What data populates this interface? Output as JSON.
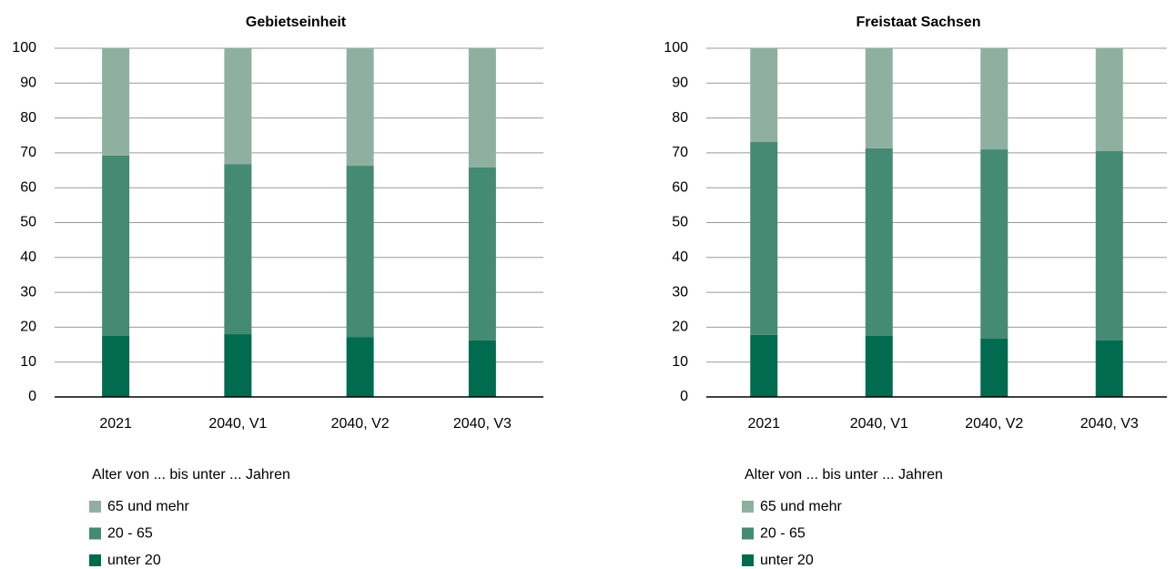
{
  "chart_data": [
    {
      "type": "stacked_bar",
      "title": "Gebietseinheit",
      "categories": [
        "2021",
        "2040, V1",
        "2040, V2",
        "2040, V3"
      ],
      "legend_title": "Alter von ... bis unter ... Jahren",
      "series": [
        {
          "name": "unter 20",
          "color": "#006b4f",
          "values": [
            17.5,
            18.0,
            17.2,
            16.2
          ]
        },
        {
          "name": "20 - 65",
          "color": "#458a72",
          "values": [
            51.7,
            48.8,
            49.1,
            49.6
          ]
        },
        {
          "name": "65 und mehr",
          "color": "#8fb0a0",
          "values": [
            30.8,
            33.2,
            33.7,
            34.2
          ]
        }
      ],
      "ylim": [
        0,
        100
      ],
      "yticks": [
        0,
        10,
        20,
        30,
        40,
        50,
        60,
        70,
        80,
        90,
        100
      ],
      "grid": true
    },
    {
      "type": "stacked_bar",
      "title": "Freistaat Sachsen",
      "categories": [
        "2021",
        "2040, V1",
        "2040, V2",
        "2040, V3"
      ],
      "legend_title": "Alter von ... bis unter ... Jahren",
      "series": [
        {
          "name": "unter 20",
          "color": "#006b4f",
          "values": [
            17.8,
            17.5,
            16.7,
            16.2
          ]
        },
        {
          "name": "20 - 65",
          "color": "#458a72",
          "values": [
            55.3,
            53.8,
            54.3,
            54.3
          ]
        },
        {
          "name": "65 und mehr",
          "color": "#8fb0a0",
          "values": [
            26.9,
            28.7,
            29.0,
            29.5
          ]
        }
      ],
      "ylim": [
        0,
        100
      ],
      "yticks": [
        0,
        10,
        20,
        30,
        40,
        50,
        60,
        70,
        80,
        90,
        100
      ],
      "grid": true
    }
  ]
}
